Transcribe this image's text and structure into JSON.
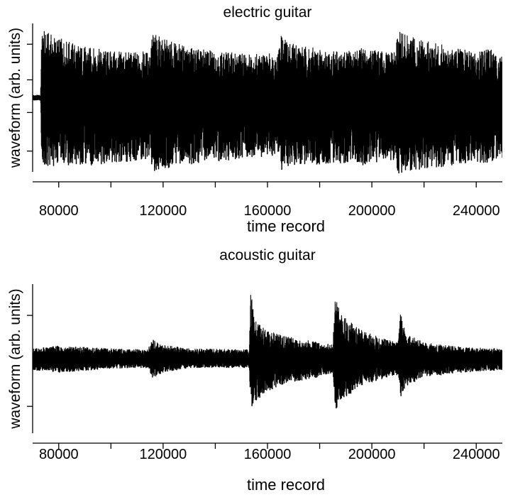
{
  "chart_data": [
    {
      "type": "line",
      "title": "electric guitar",
      "xlabel": "time record",
      "ylabel": "waveform (arb. units)",
      "xlim": [
        70000,
        250000
      ],
      "ylim": [
        -1.3,
        1.3
      ],
      "x_ticks": [
        80000,
        120000,
        160000,
        200000,
        240000
      ],
      "x_tick_labels": [
        "80000",
        "120000",
        "160000",
        "200000",
        "240000"
      ],
      "grid": false,
      "color": "#000000",
      "series": [
        {
          "x": [
            70000,
            73000,
            73500,
            80000,
            90000,
            100000,
            110000,
            115000,
            116000,
            118000,
            125000,
            135000,
            145000,
            155000,
            164000,
            165000,
            167000,
            175000,
            185000,
            193000,
            195000,
            205000,
            209000,
            210000,
            213000,
            220000,
            230000,
            240000,
            245000,
            248000,
            250000
          ],
          "upper": [
            0.05,
            0.05,
            1.2,
            1.05,
            0.9,
            0.82,
            0.8,
            0.82,
            1.18,
            1.08,
            0.95,
            0.85,
            0.8,
            0.78,
            0.78,
            1.12,
            1.02,
            0.9,
            0.82,
            0.82,
            0.9,
            0.8,
            0.8,
            1.2,
            1.1,
            1.0,
            0.9,
            0.8,
            0.88,
            0.72,
            0.75
          ],
          "lower": [
            -0.05,
            -0.05,
            -1.2,
            -1.2,
            -1.2,
            -1.15,
            -1.12,
            -1.1,
            -1.3,
            -1.28,
            -1.2,
            -1.15,
            -1.1,
            -1.05,
            -1.05,
            -1.3,
            -1.25,
            -1.2,
            -1.15,
            -1.15,
            -1.2,
            -1.1,
            -1.1,
            -1.35,
            -1.3,
            -1.25,
            -1.2,
            -1.15,
            -1.2,
            -1.05,
            -1.1
          ]
        }
      ]
    },
    {
      "type": "line",
      "title": "acoustic guitar",
      "xlabel": "time record",
      "ylabel": "waveform (arb. units)",
      "xlim": [
        70000,
        250000
      ],
      "ylim": [
        -1.6,
        1.6
      ],
      "x_ticks": [
        80000,
        120000,
        160000,
        200000,
        240000
      ],
      "x_tick_labels": [
        "80000",
        "120000",
        "160000",
        "200000",
        "240000"
      ],
      "grid": false,
      "color": "#000000",
      "series": [
        {
          "x": [
            70000,
            80000,
            100000,
            114000,
            116000,
            120000,
            130000,
            150000,
            153000,
            153500,
            155000,
            160000,
            170000,
            180000,
            185000,
            186000,
            188000,
            195000,
            205000,
            210000,
            211000,
            213000,
            220000,
            235000,
            250000
          ],
          "upper": [
            0.22,
            0.28,
            0.22,
            0.2,
            0.42,
            0.3,
            0.22,
            0.2,
            0.2,
            1.55,
            0.82,
            0.6,
            0.45,
            0.35,
            0.3,
            1.4,
            0.95,
            0.65,
            0.42,
            0.35,
            1.0,
            0.55,
            0.35,
            0.25,
            0.22
          ],
          "lower": [
            -0.25,
            -0.3,
            -0.22,
            -0.2,
            -0.42,
            -0.3,
            -0.2,
            -0.2,
            -0.2,
            -1.15,
            -0.95,
            -0.7,
            -0.5,
            -0.4,
            -0.3,
            -1.1,
            -0.95,
            -0.6,
            -0.42,
            -0.35,
            -0.85,
            -0.6,
            -0.4,
            -0.3,
            -0.25
          ]
        }
      ]
    }
  ]
}
